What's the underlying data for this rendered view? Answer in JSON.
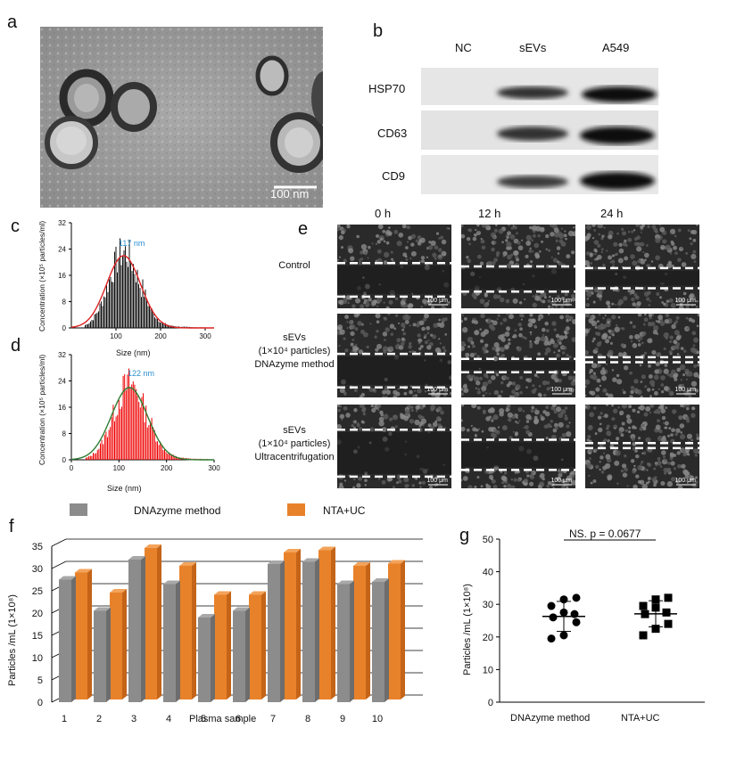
{
  "panels": {
    "a": {
      "label": "a",
      "scale_bar": "100 nm"
    },
    "b": {
      "label": "b",
      "columns": [
        "NC",
        "sEVs",
        "A549"
      ],
      "rows": [
        "HSP70",
        "CD63",
        "CD9"
      ]
    },
    "c": {
      "label": "c",
      "peak_label": "117 nm",
      "ylabel": "Concentration (×10⁵ particles/ml)",
      "xlabel": "Size (nm)",
      "yticks": [
        "0",
        "8",
        "16",
        "24",
        "32"
      ],
      "xticks": [
        "100",
        "200",
        "300"
      ]
    },
    "d": {
      "label": "d",
      "peak_label": "122 nm",
      "ylabel": "Concentration (×10⁵ particles/ml)",
      "xlabel": "Size (nm)",
      "yticks": [
        "0",
        "8",
        "16",
        "24",
        "32"
      ],
      "xticks": [
        "0",
        "100",
        "200",
        "300"
      ]
    },
    "e": {
      "label": "e",
      "times": [
        "0 h",
        "12 h",
        "24 h"
      ],
      "rows": [
        {
          "l1": "Control",
          "l2": "",
          "l3": ""
        },
        {
          "l1": "sEVs",
          "l2": "(1×10⁴ particles)",
          "l3": "DNAzyme method"
        },
        {
          "l1": "sEVs",
          "l2": "(1×10⁴ particles)",
          "l3": "Ultracentrifugation"
        }
      ],
      "scale_bar": "100 μm"
    },
    "f": {
      "label": "f",
      "legend": [
        "DNAzyme method",
        "NTA+UC"
      ],
      "ylabel": "Particles /mL (1×10⁸)",
      "xlabel": "Plasma sample",
      "yticks": [
        "0",
        "5",
        "10",
        "15",
        "20",
        "25",
        "30",
        "35"
      ],
      "colors": {
        "dnazyme": "#8c8c8c",
        "ntauc": "#e8822a"
      }
    },
    "g": {
      "label": "g",
      "stat": "NS. p = 0.0677",
      "ylabel": "Particles /mL (1×10⁸)",
      "yticks": [
        "0",
        "10",
        "20",
        "30",
        "40",
        "50"
      ],
      "categories": [
        "DNAzyme method",
        "NTA+UC"
      ]
    }
  },
  "chart_data": [
    {
      "type": "bar",
      "title": "",
      "xlabel": "Size (nm)",
      "ylabel": "Concentration (×10⁵ particles/ml)",
      "ylim": [
        0,
        32
      ],
      "xlim": [
        0,
        320
      ],
      "peak": 117,
      "fit_color": "#d22",
      "bar_color": "#111"
    },
    {
      "type": "bar",
      "title": "",
      "xlabel": "Size (nm)",
      "ylabel": "Concentration (×10⁵ particles/ml)",
      "ylim": [
        0,
        32
      ],
      "xlim": [
        0,
        300
      ],
      "peak": 122,
      "fit_color": "#2e7d32",
      "bar_color": "#e00"
    },
    {
      "type": "bar",
      "xlabel": "Plasma sample",
      "ylabel": "Particles /mL (1×10⁸)",
      "categories": [
        "1",
        "2",
        "3",
        "4",
        "5",
        "6",
        "7",
        "8",
        "9",
        "10"
      ],
      "ylim": [
        0,
        35
      ],
      "series": [
        {
          "name": "DNAzyme method",
          "values": [
            27.5,
            20.5,
            32,
            26.5,
            19,
            20.5,
            31,
            31.5,
            26.5,
            27
          ]
        },
        {
          "name": "NTA+UC",
          "values": [
            28.5,
            24,
            34,
            30,
            23.5,
            23.5,
            33,
            33.5,
            30,
            30.5
          ]
        }
      ]
    },
    {
      "type": "scatter",
      "xlabel": "",
      "ylabel": "Particles /mL (1×10⁸)",
      "categories": [
        "DNAzyme method",
        "NTA+UC"
      ],
      "ylim": [
        0,
        50
      ],
      "annotation": "NS. p = 0.0677",
      "series": [
        {
          "name": "DNAzyme method",
          "values": [
            19.5,
            20.5,
            24.5,
            26,
            27,
            27.5,
            29.5,
            31.5,
            32
          ],
          "mean": 26.3,
          "sd": 4.6
        },
        {
          "name": "NTA+UC",
          "values": [
            20.5,
            22.5,
            24,
            27,
            27.5,
            29,
            29.5,
            31.5,
            32
          ],
          "mean": 27.1,
          "sd": 4.0
        }
      ]
    }
  ]
}
